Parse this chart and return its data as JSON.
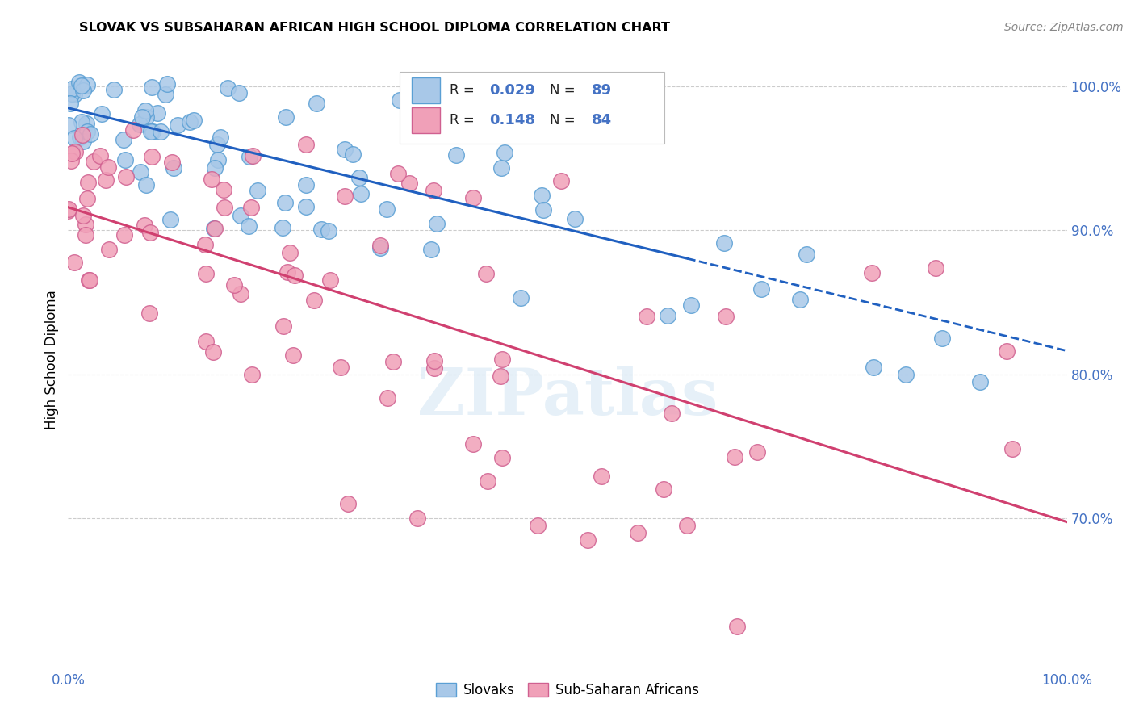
{
  "title": "SLOVAK VS SUBSAHARAN AFRICAN HIGH SCHOOL DIPLOMA CORRELATION CHART",
  "source": "Source: ZipAtlas.com",
  "ylabel": "High School Diploma",
  "watermark": "ZIPatlas",
  "legend_entries": [
    "Slovaks",
    "Sub-Saharan Africans"
  ],
  "blue_color": "#a8c8e8",
  "blue_edge_color": "#5a9fd4",
  "pink_color": "#f0a0b8",
  "pink_edge_color": "#d06090",
  "blue_line_color": "#2060c0",
  "pink_line_color": "#d04070",
  "right_axis_color": "#4472c4",
  "axis_tick_color": "#4472c4",
  "background_color": "#ffffff",
  "grid_color": "#cccccc",
  "xlim": [
    0.0,
    1.0
  ],
  "ylim": [
    0.595,
    1.025
  ],
  "right_yticks": [
    0.7,
    0.8,
    0.9,
    1.0
  ],
  "right_yticklabels": [
    "70.0%",
    "80.0%",
    "90.0%",
    "100.0%"
  ],
  "legend_r1": "0.029",
  "legend_n1": "89",
  "legend_r2": "0.148",
  "legend_n2": "84"
}
